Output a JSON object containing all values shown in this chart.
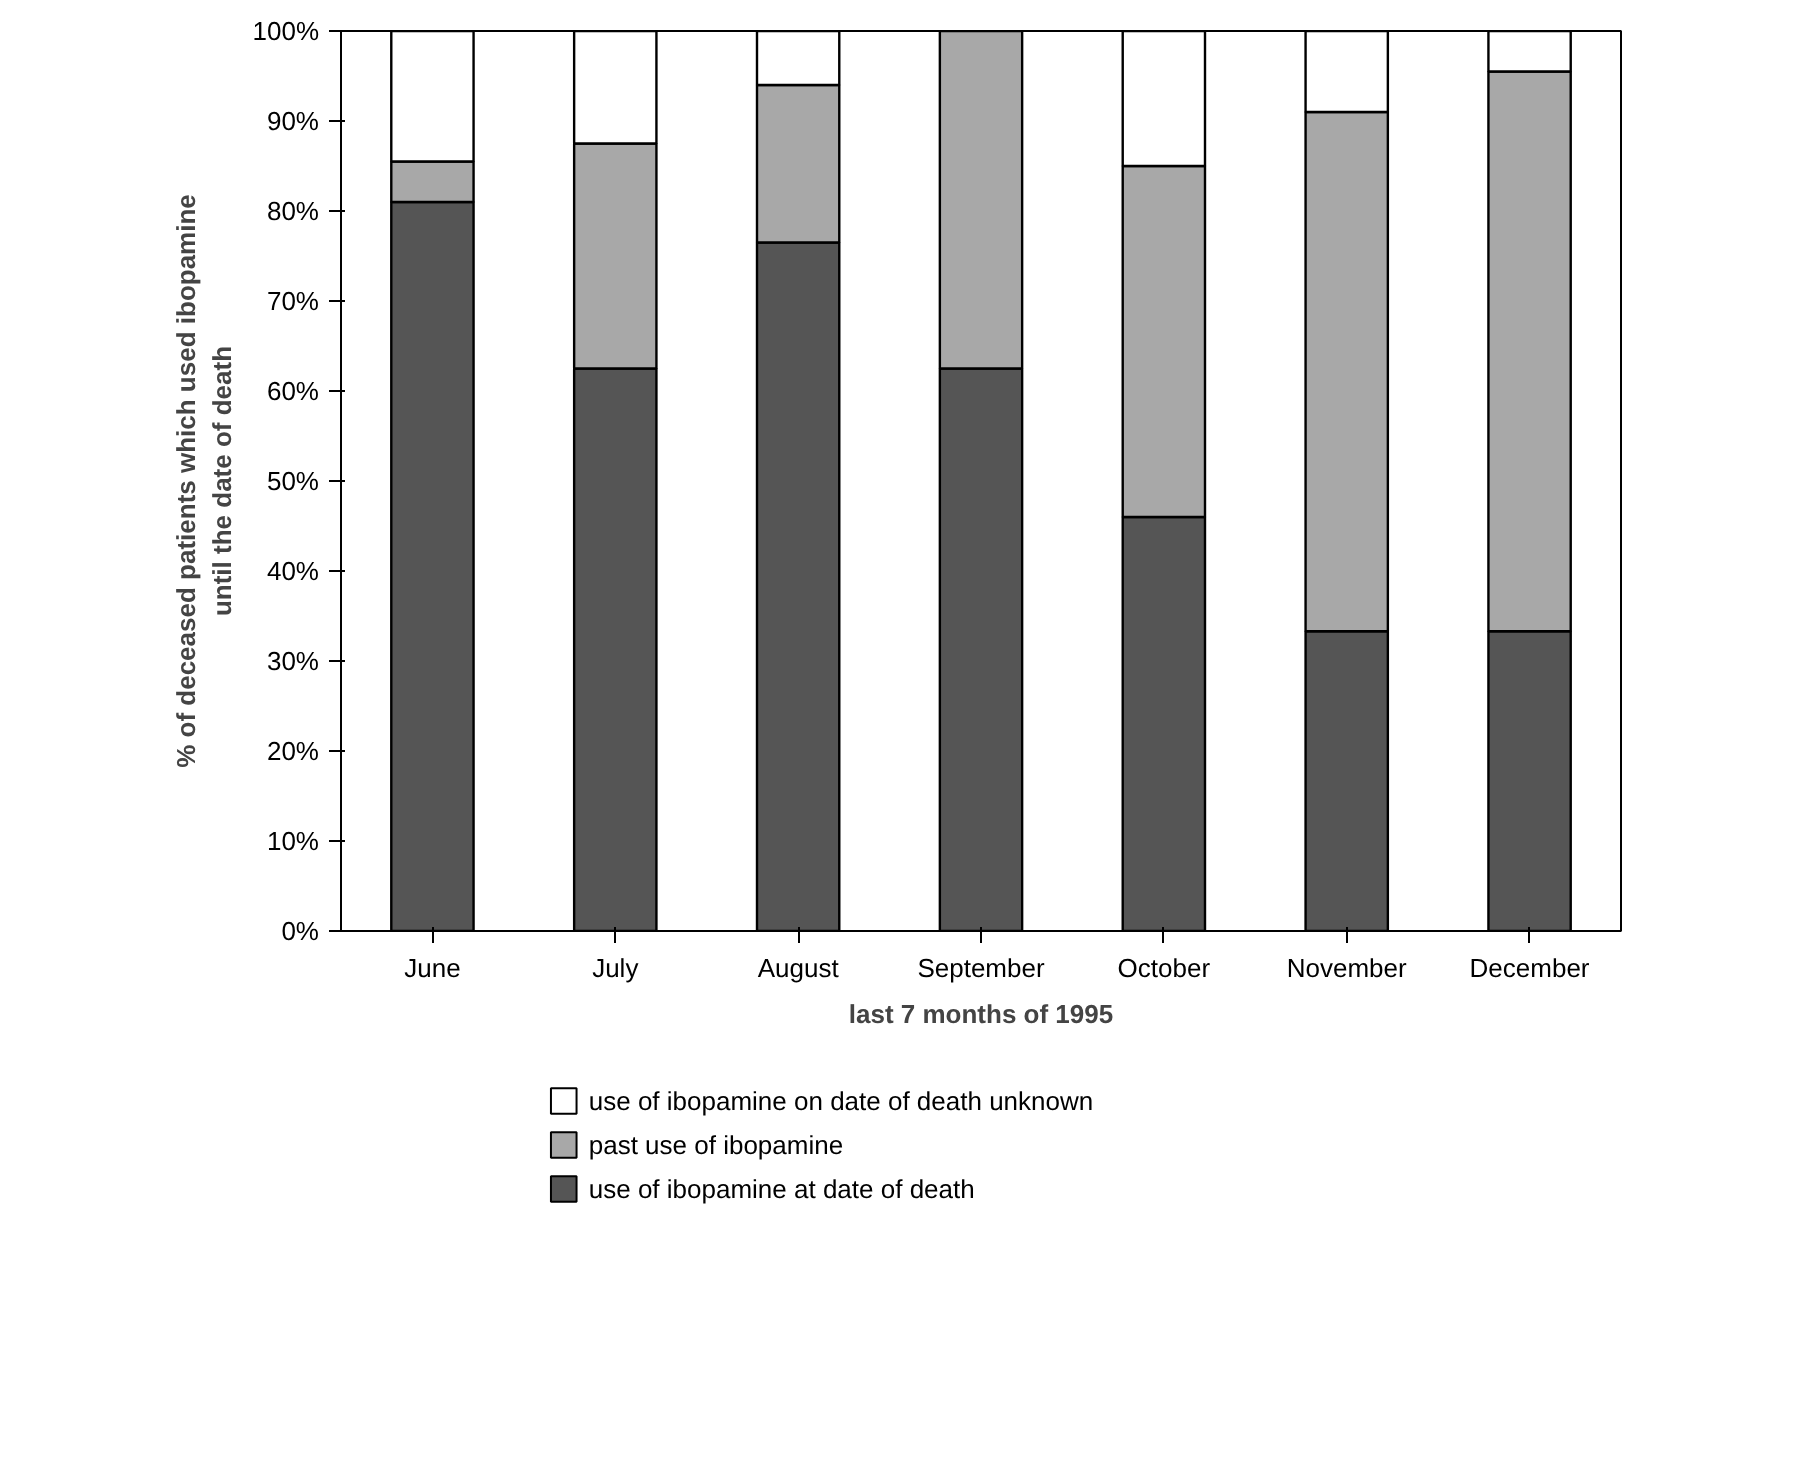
{
  "chart_data": {
    "type": "bar",
    "stacked": true,
    "xlabel": "last 7 months of 1995",
    "ylabel": "% of deceased patients which used ibopamine\nuntil the date of death",
    "categories": [
      "June",
      "July",
      "August",
      "September",
      "October",
      "November",
      "December"
    ],
    "series": [
      {
        "name": "use of ibopamine at date of death",
        "color": "#555555",
        "values": [
          81,
          62.5,
          76.5,
          62.5,
          46,
          33.3,
          33.3
        ]
      },
      {
        "name": "past use of ibopamine",
        "color": "#a8a8a8",
        "values": [
          4.5,
          25,
          17.5,
          37.5,
          39,
          57.7,
          62.2
        ]
      },
      {
        "name": "use of ibopamine on date of death unknown",
        "color": "#ffffff",
        "values": [
          14.5,
          12.5,
          6,
          0,
          15,
          9,
          4.5
        ]
      }
    ],
    "ylim": [
      0,
      100
    ],
    "yticks": [
      {
        "value": 0,
        "label": "0%"
      },
      {
        "value": 10,
        "label": "10%"
      },
      {
        "value": 20,
        "label": "20%"
      },
      {
        "value": 30,
        "label": "30%"
      },
      {
        "value": 40,
        "label": "40%"
      },
      {
        "value": 50,
        "label": "50%"
      },
      {
        "value": 60,
        "label": "60%"
      },
      {
        "value": 70,
        "label": "70%"
      },
      {
        "value": 80,
        "label": "80%"
      },
      {
        "value": 90,
        "label": "90%"
      },
      {
        "value": 100,
        "label": "100%"
      }
    ],
    "grid": false,
    "legend": "bottom"
  }
}
